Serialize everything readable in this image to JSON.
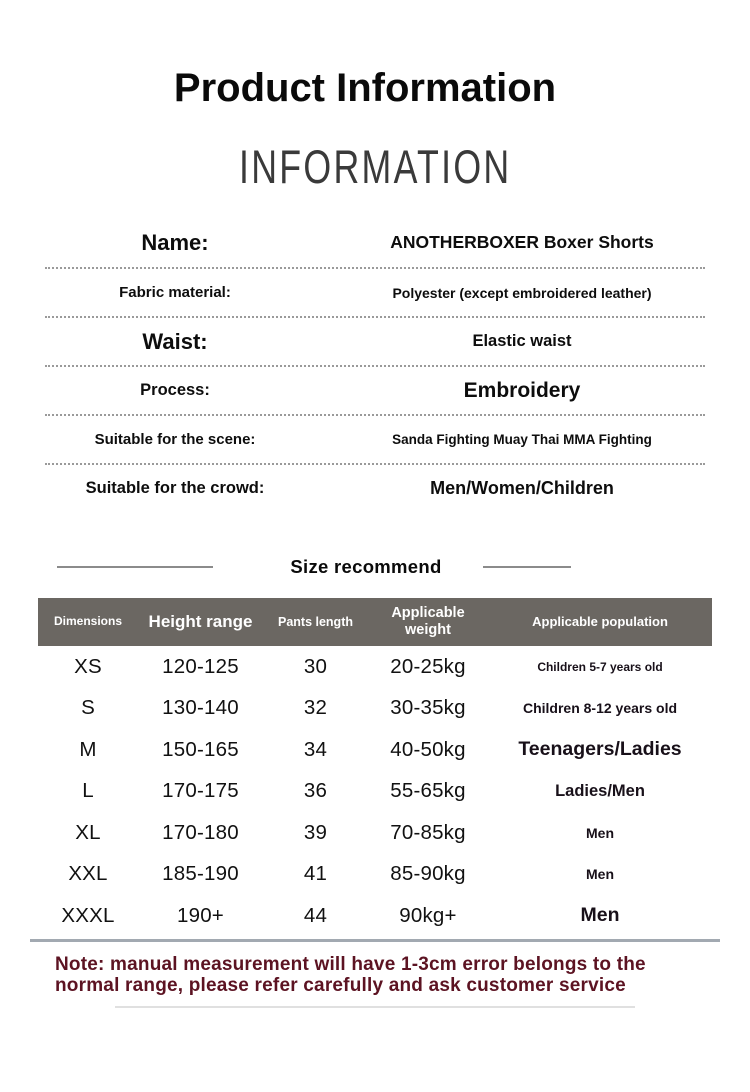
{
  "page": {
    "title": "Product Information",
    "subtitle": "INFORMATION"
  },
  "info": {
    "rows": [
      {
        "label": "Name:",
        "value": "ANOTHERBOXER Boxer Shorts",
        "label_class": "f22",
        "value_class": "f17"
      },
      {
        "label": "Fabric material:",
        "value": "Polyester (except embroidered leather)",
        "label_class": "f15",
        "value_class": "f14"
      },
      {
        "label": "Waist:",
        "value": "Elastic waist",
        "label_class": "f22",
        "value_class": "f16"
      },
      {
        "label": "Process:",
        "value": "Embroidery",
        "label_class": "f16",
        "value_class": "f21"
      },
      {
        "label": "Suitable for the scene:",
        "value": "Sanda Fighting Muay Thai MMA Fighting",
        "label_class": "f15",
        "value_class": "f13"
      },
      {
        "label": "Suitable for the crowd:",
        "value": "Men/Women/Children",
        "label_class": "f16",
        "value_class": "f18"
      }
    ]
  },
  "size_section": {
    "heading": "Size recommend",
    "table": {
      "headers": [
        "Dimensions",
        "Height range",
        "Pants length",
        "Applicable weight",
        "Applicable population"
      ],
      "rows": [
        {
          "cells": [
            "XS",
            "120-125",
            "30",
            "20-25kg",
            "Children 5-7 years old"
          ],
          "pop_class": "f12"
        },
        {
          "cells": [
            "S",
            "130-140",
            "32",
            "30-35kg",
            "Children 8-12 years old"
          ],
          "pop_class": "f14"
        },
        {
          "cells": [
            "M",
            "150-165",
            "34",
            "40-50kg",
            "Teenagers/Ladies"
          ],
          "pop_class": "f19"
        },
        {
          "cells": [
            "L",
            "170-175",
            "36",
            "55-65kg",
            "Ladies/Men"
          ],
          "pop_class": "f16"
        },
        {
          "cells": [
            "XL",
            "170-180",
            "39",
            "70-85kg",
            "Men"
          ],
          "pop_class": "f14"
        },
        {
          "cells": [
            "XXL",
            "185-190",
            "41",
            "85-90kg",
            "Men"
          ],
          "pop_class": "f14"
        },
        {
          "cells": [
            "XXXL",
            "190+",
            "44",
            "90kg+",
            "Men"
          ],
          "pop_class": "f19"
        }
      ]
    }
  },
  "note": {
    "line1": "Note: manual measurement will have 1-3cm error belongs to the",
    "line2": "normal range, please refer carefully and ask customer service"
  },
  "colors": {
    "table_header_bg": "#6b6762",
    "note_text": "#5c1322",
    "divider": "#a2a9b1",
    "dotted_separator": "#9a9a9a"
  }
}
